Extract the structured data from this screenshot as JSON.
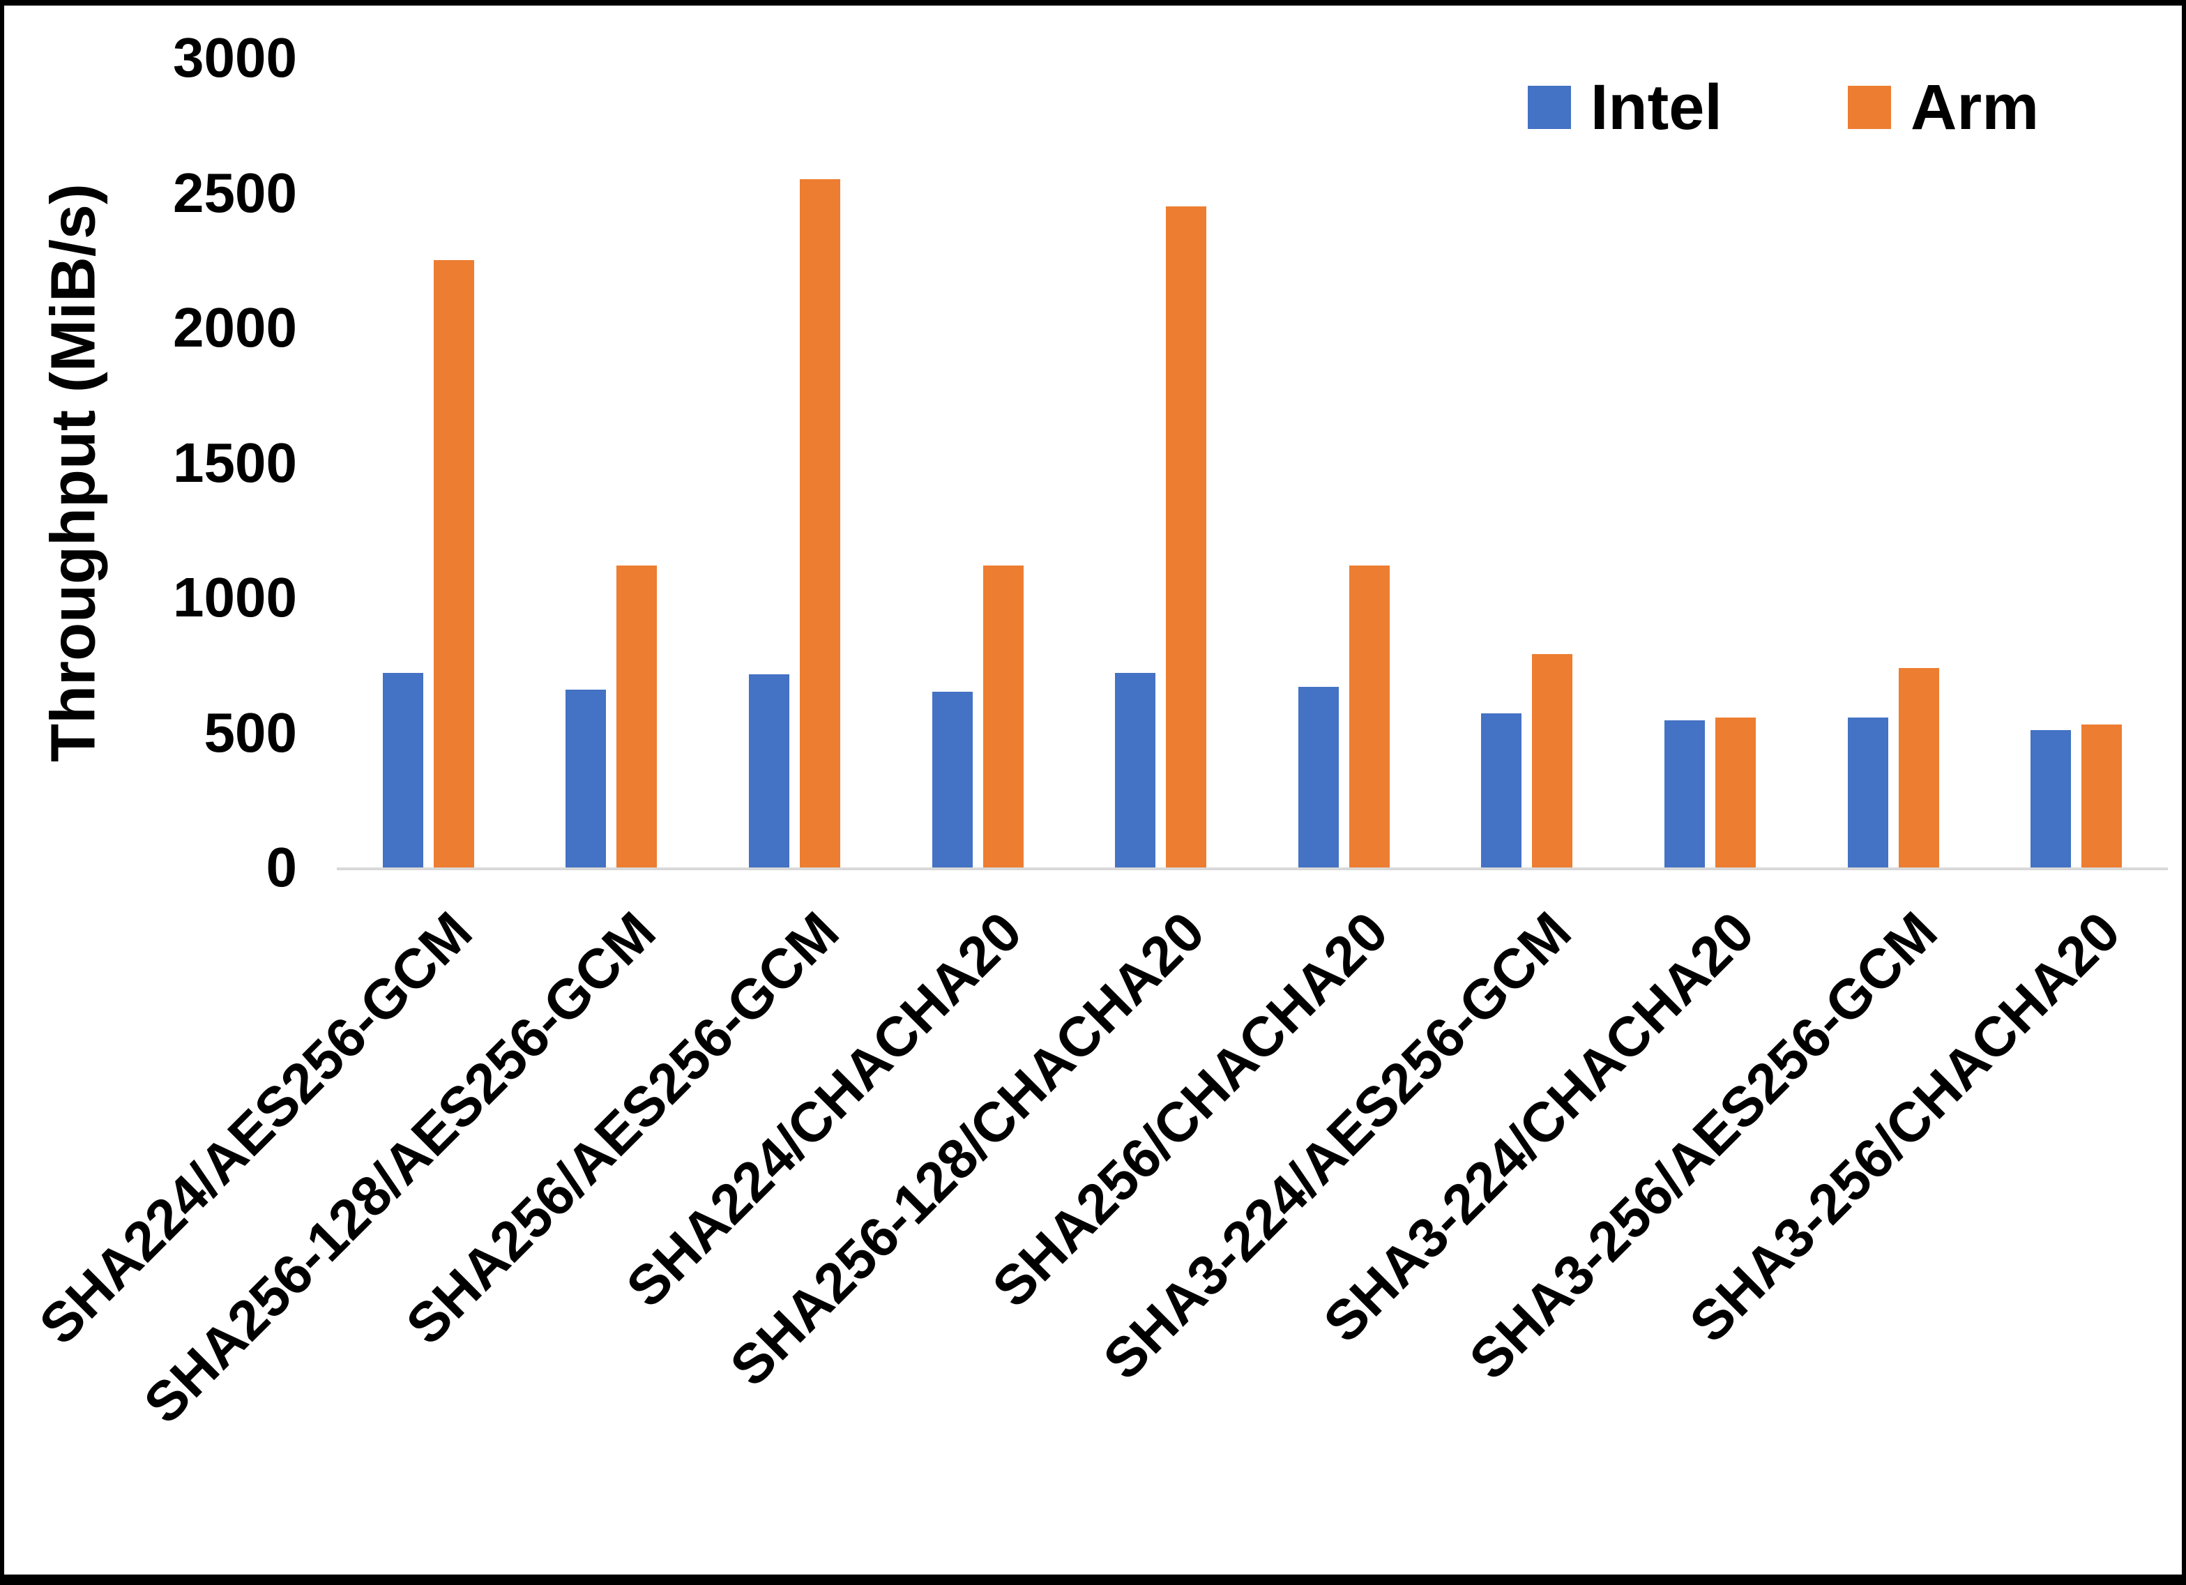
{
  "figure": {
    "background": "#FFFFFF",
    "frame_color": "#000000"
  },
  "chart_data": {
    "type": "bar",
    "title": "",
    "xlabel": "",
    "ylabel": "Throughput (MiB/s)",
    "ylim": [
      0,
      3000
    ],
    "yticks": [
      0,
      500,
      1000,
      1500,
      2000,
      2500,
      3000
    ],
    "grid": false,
    "legend_position": "top-right",
    "axis_line_color": "#D9D9D9",
    "text_color": "#000000",
    "categories": [
      "SHA224/AES256-GCM",
      "SHA256-128/AES256-GCM",
      "SHA256/AES256-GCM",
      "SHA224/CHACHA20",
      "SHA256-128/CHACHA20",
      "SHA256/CHACHA20",
      "SHA3-224/AES256-GCM",
      "SHA3-224/CHACHA20",
      "SHA3-256/AES256-GCM",
      "SHA3-256/CHACHA20"
    ],
    "series": [
      {
        "name": "Intel",
        "color": "#4472C4",
        "values": [
          720,
          660,
          715,
          650,
          720,
          670,
          570,
          545,
          555,
          510
        ]
      },
      {
        "name": "Arm",
        "color": "#ED7D31",
        "values": [
          2250,
          1120,
          2550,
          1120,
          2450,
          1120,
          790,
          555,
          740,
          530
        ]
      }
    ]
  }
}
